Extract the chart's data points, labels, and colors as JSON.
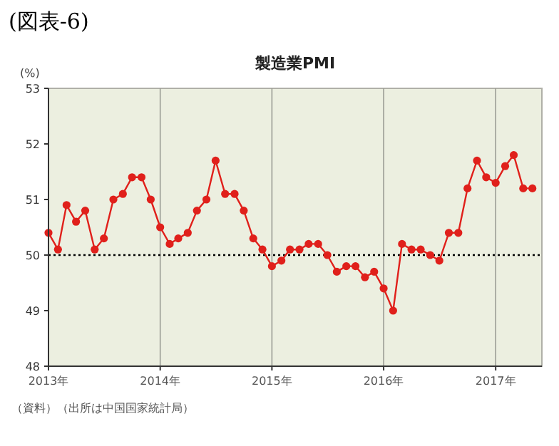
{
  "chart_data": {
    "type": "line",
    "title": "製造業PMI",
    "ylabel": "(%)",
    "annotations": [
      "(図表-6)",
      "（資料）（出所は中国国家統計局）"
    ],
    "x": [
      "2013-01",
      "2013-02",
      "2013-03",
      "2013-04",
      "2013-05",
      "2013-06",
      "2013-07",
      "2013-08",
      "2013-09",
      "2013-10",
      "2013-11",
      "2013-12",
      "2014-01",
      "2014-02",
      "2014-03",
      "2014-04",
      "2014-05",
      "2014-06",
      "2014-07",
      "2014-08",
      "2014-09",
      "2014-10",
      "2014-11",
      "2014-12",
      "2015-01",
      "2015-02",
      "2015-03",
      "2015-04",
      "2015-05",
      "2015-06",
      "2015-07",
      "2015-08",
      "2015-09",
      "2015-10",
      "2015-11",
      "2015-12",
      "2016-01",
      "2016-02",
      "2016-03",
      "2016-04",
      "2016-05",
      "2016-06",
      "2016-07",
      "2016-08",
      "2016-09",
      "2016-10",
      "2016-11",
      "2016-12",
      "2017-01",
      "2017-02",
      "2017-03",
      "2017-04",
      "2017-05"
    ],
    "series": [
      {
        "color": "#e0201b",
        "values": [
          50.4,
          50.1,
          50.9,
          50.6,
          50.8,
          50.1,
          50.3,
          51.0,
          51.1,
          51.4,
          51.4,
          51.0,
          50.5,
          50.2,
          50.3,
          50.4,
          50.8,
          51.0,
          51.7,
          51.1,
          51.1,
          50.8,
          50.3,
          50.1,
          49.8,
          49.9,
          50.1,
          50.1,
          50.2,
          50.2,
          50.0,
          49.7,
          49.8,
          49.8,
          49.6,
          49.7,
          49.4,
          49.0,
          50.2,
          50.1,
          50.1,
          50.0,
          49.9,
          50.4,
          50.4,
          51.2,
          51.7,
          51.4,
          51.3,
          51.6,
          51.8,
          51.2,
          51.2
        ]
      }
    ],
    "xlim": [
      "2013-01",
      "2017-06"
    ],
    "xticks": [
      {
        "value": "2013-01",
        "label": "2013年"
      },
      {
        "value": "2014-01",
        "label": "2014年"
      },
      {
        "value": "2015-01",
        "label": "2015年"
      },
      {
        "value": "2016-01",
        "label": "2016年"
      },
      {
        "value": "2017-01",
        "label": "2017年"
      }
    ],
    "ylim": [
      48,
      53
    ],
    "yticks": [
      48,
      49,
      50,
      51,
      52,
      53
    ],
    "grid": "x",
    "marker": "circle",
    "line_style": "solid",
    "ref_lines": [
      {
        "axis": "y",
        "value": 50,
        "line_style": "dotted",
        "color": "#000000"
      }
    ]
  }
}
